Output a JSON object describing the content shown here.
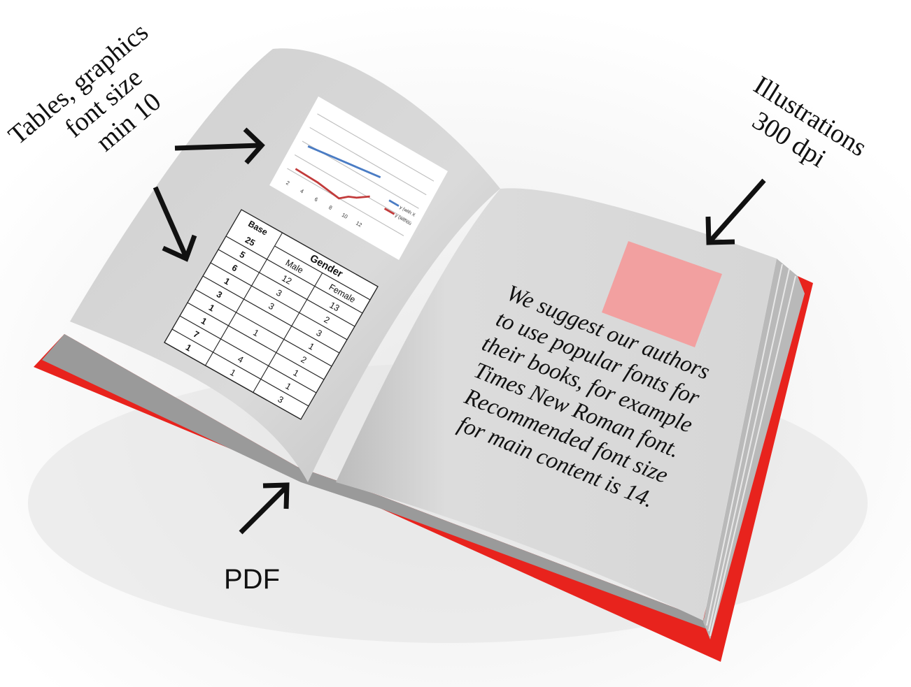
{
  "annotations": {
    "tables_note": [
      "Tables, graphics",
      "font size",
      "min 10"
    ],
    "illustrations_note": [
      "Illustrations",
      "300 dpi"
    ],
    "pdf_note": "PDF"
  },
  "left_page": {
    "chart": {
      "x_ticks": [
        "2",
        "4",
        "6",
        "8",
        "10",
        "12"
      ],
      "legend": [
        "y (with X",
        "y (withou"
      ]
    },
    "table": {
      "header": [
        "Base",
        "Gender"
      ],
      "rows": [
        [
          "25",
          "Male",
          "Female"
        ],
        [
          "5",
          "12",
          "13"
        ],
        [
          "6",
          "3",
          "2"
        ],
        [
          "1",
          "3",
          "3"
        ],
        [
          "3",
          "",
          "1"
        ],
        [
          "1",
          "1",
          "2"
        ],
        [
          "1",
          "",
          "1"
        ],
        [
          "7",
          "4",
          "1"
        ],
        [
          "1",
          "1",
          "3"
        ]
      ]
    }
  },
  "right_page": {
    "paragraph": [
      "We suggest our authors",
      "to use popular fonts for",
      "their books, for example",
      "Times New Roman font.",
      "Recommended font size",
      "for main content is 14."
    ]
  }
}
